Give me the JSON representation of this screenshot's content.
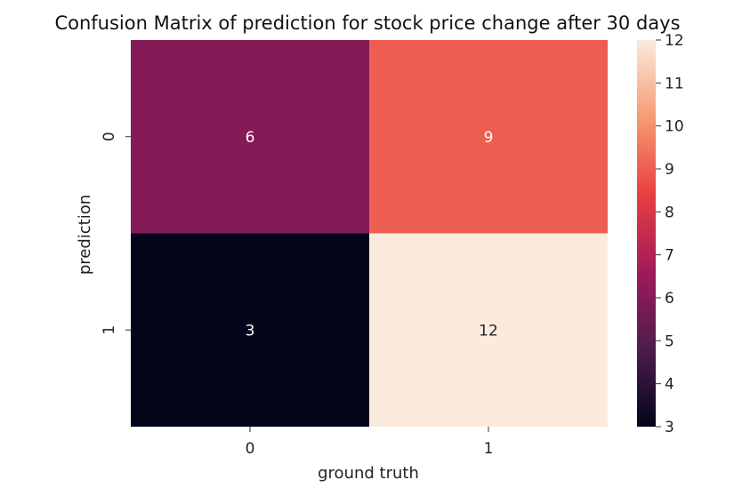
{
  "chart_data": {
    "type": "heatmap",
    "title": "Confusion Matrix of prediction for stock price change after 30 days",
    "xlabel": "ground truth",
    "ylabel": "prediction",
    "x_categories": [
      "0",
      "1"
    ],
    "y_categories": [
      "0",
      "1"
    ],
    "values": [
      [
        6,
        9
      ],
      [
        3,
        12
      ]
    ],
    "colorbar": {
      "range": [
        3,
        12
      ],
      "ticks": [
        "3",
        "4",
        "5",
        "6",
        "7",
        "8",
        "9",
        "10",
        "11",
        "12"
      ],
      "colormap": "rocket",
      "stops": [
        "#03051a",
        "#4c1d4b",
        "#a11a5b",
        "#e83f3f",
        "#f69c73",
        "#faebdd"
      ]
    },
    "grid": false
  }
}
